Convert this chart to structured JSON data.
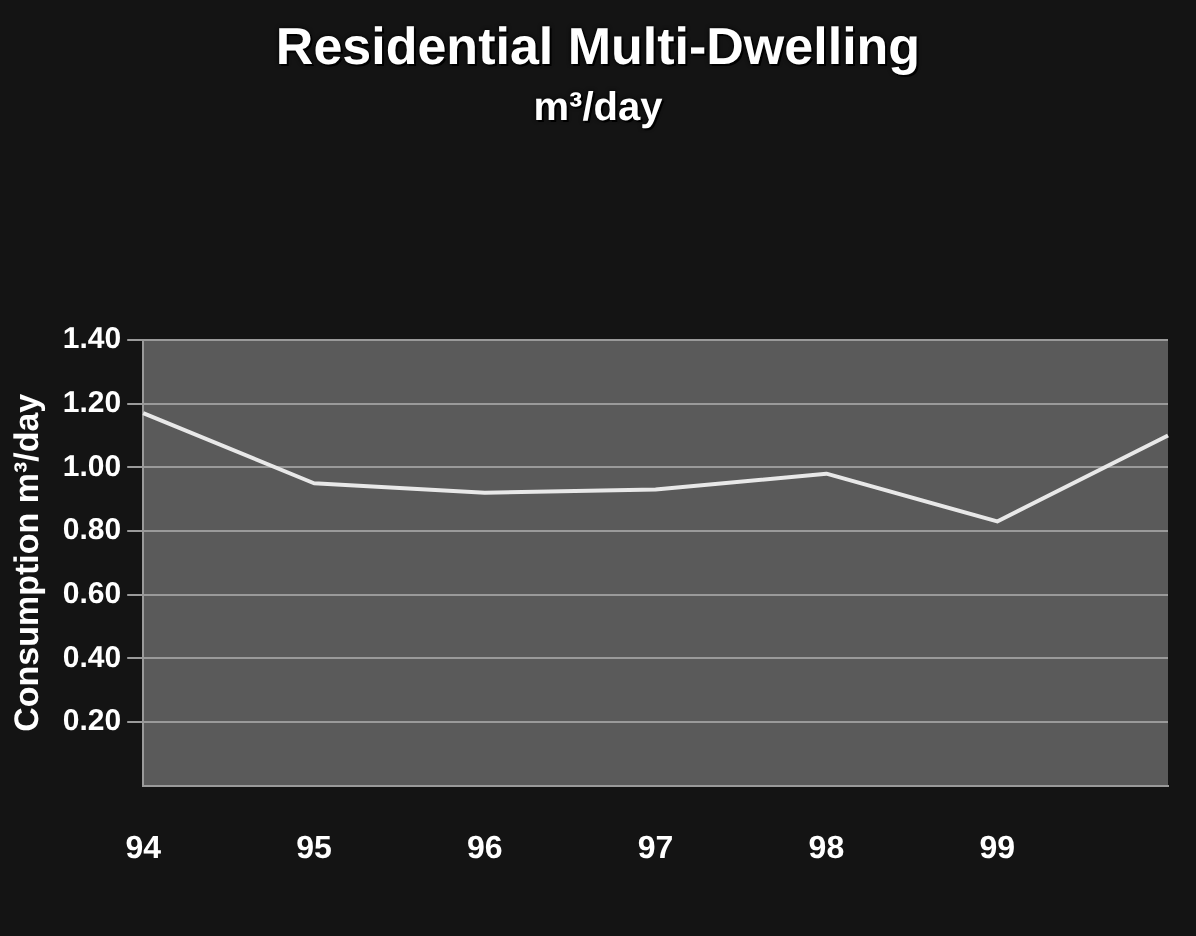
{
  "chart_data": {
    "type": "line",
    "title": "Residential Multi-Dwelling",
    "subtitle": "m³/day",
    "ylabel": "Consumption m³/day",
    "categories": [
      "94",
      "95",
      "96",
      "97",
      "98",
      "99",
      null
    ],
    "series": [
      {
        "color": "#e8e8e8",
        "values": [
          1.17,
          0.95,
          0.92,
          0.93,
          0.98,
          0.83,
          1.1
        ]
      }
    ],
    "ylim": [
      0,
      1.4
    ],
    "yticks": [
      {
        "value": 0.2,
        "label": "0.20"
      },
      {
        "value": 0.4,
        "label": "0.40"
      },
      {
        "value": 0.6,
        "label": "0.60"
      },
      {
        "value": 0.8,
        "label": "0.80"
      },
      {
        "value": 1.0,
        "label": "1.00"
      },
      {
        "value": 1.2,
        "label": "1.20"
      },
      {
        "value": 1.4,
        "label": "1.40"
      }
    ],
    "grid": "y",
    "legend": false,
    "marker": "none",
    "line_style": "solid"
  }
}
